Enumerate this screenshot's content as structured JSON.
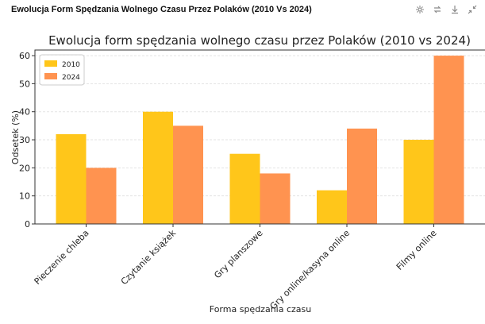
{
  "window": {
    "title": "Ewolucja Form Spędzania Wolnego Czasu Przez Polaków (2010 Vs 2024)"
  },
  "toolbar": {
    "icons": [
      "settings-icon",
      "compare-icon",
      "download-icon",
      "collapse-icon"
    ]
  },
  "chart_data": {
    "type": "bar",
    "title": "Ewolucja form spędzania wolnego czasu przez Polaków (2010 vs 2024)",
    "xlabel": "Forma spędzania czasu",
    "ylabel": "Odsetek (%)",
    "ylim": [
      0,
      62
    ],
    "yticks": [
      0,
      10,
      20,
      30,
      40,
      50,
      60
    ],
    "grid": true,
    "legend_position": "top-left",
    "categories": [
      "Pieczenie chleba",
      "Czytanie książek",
      "Gry planszowe",
      "Gry online/kasyna online",
      "Filmy online"
    ],
    "series": [
      {
        "name": "2010",
        "values": [
          32,
          40,
          25,
          12,
          30
        ],
        "color": "#FFC61A"
      },
      {
        "name": "2024",
        "values": [
          20,
          35,
          18,
          34,
          60
        ],
        "color": "#FF9350"
      }
    ]
  }
}
